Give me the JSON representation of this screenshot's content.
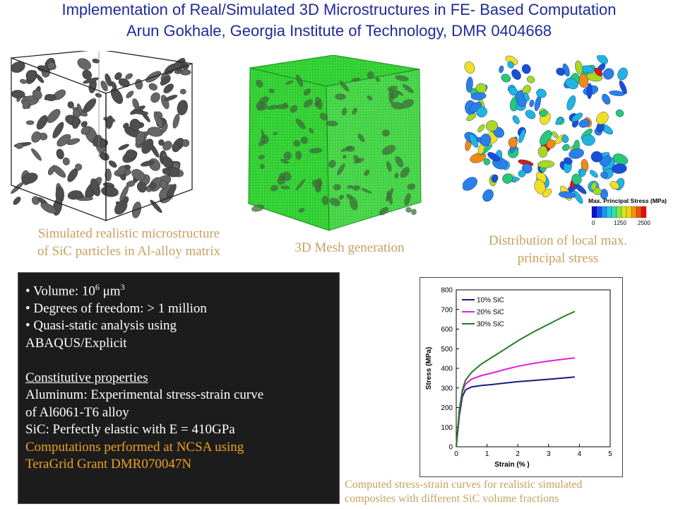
{
  "header": {
    "title": "Implementation of Real/Simulated 3D Microstructures in FE- Based Computation",
    "subtitle": "Arun Gokhale, Georgia Institute of Technology, DMR 0404668"
  },
  "panels": {
    "microstructure": {
      "caption_line1": "Simulated realistic microstructure",
      "caption_line2": "of SiC particles in Al-alloy matrix"
    },
    "mesh": {
      "caption": "3D Mesh generation"
    },
    "stress": {
      "caption_line1": "Distribution of local max.",
      "caption_line2": "principal stress",
      "colorbar_title": "Max. Principal Stress (MPa)",
      "colorbar_ticks": [
        "0",
        "1250",
        "2500"
      ]
    }
  },
  "info": {
    "volume_prefix": "• Volume: 10",
    "volume_exp": "6",
    "volume_unit": " μm",
    "volume_unit_exp": "3",
    "dof": "• Degrees of freedom: > 1 million",
    "quasi_line1": "• Quasi-static analysis using",
    "quasi_line2": "ABAQUS/Explicit",
    "constitutive_heading": "Constitutive properties",
    "aluminum_line1": "Aluminum: Experimental stress-strain curve",
    "aluminum_line2": "of Al6061-T6 alloy",
    "sic": "SiC: Perfectly elastic with E = 410GPa",
    "ncsa_line1": "Computations performed at NCSA using",
    "ncsa_line2": "TeraGrid Grant DMR070047N"
  },
  "chart_caption": {
    "line1": "Computed stress-strain curves for realistic simulated",
    "line2": "composites with different SiC volume fractions"
  },
  "chart_data": {
    "type": "line",
    "xlabel": "Strain (% )",
    "ylabel": "Stress (MPa)",
    "xlim": [
      0,
      5
    ],
    "ylim": [
      0,
      800
    ],
    "xticks": [
      0,
      1,
      2,
      3,
      4,
      5
    ],
    "yticks": [
      0,
      100,
      200,
      300,
      400,
      500,
      600,
      700,
      800
    ],
    "legend_position": "top-left",
    "series": [
      {
        "name": "10% SiC",
        "color": "#1a1a80",
        "x": [
          0,
          0.1,
          0.2,
          0.3,
          0.5,
          0.8,
          1.2,
          1.6,
          2.0,
          2.5,
          3.0,
          3.5,
          3.85
        ],
        "y": [
          0,
          160,
          255,
          290,
          305,
          312,
          318,
          325,
          332,
          338,
          344,
          351,
          356
        ]
      },
      {
        "name": "20% SiC",
        "color": "#e020e0",
        "x": [
          0,
          0.1,
          0.2,
          0.3,
          0.5,
          0.8,
          1.2,
          1.6,
          2.0,
          2.5,
          3.0,
          3.5,
          3.85
        ],
        "y": [
          0,
          180,
          280,
          320,
          345,
          362,
          378,
          395,
          410,
          425,
          437,
          447,
          453
        ]
      },
      {
        "name": "30% SiC",
        "color": "#208020",
        "x": [
          0,
          0.1,
          0.2,
          0.3,
          0.5,
          0.8,
          1.2,
          1.6,
          2.0,
          2.5,
          3.0,
          3.5,
          3.85
        ],
        "y": [
          0,
          190,
          290,
          340,
          380,
          420,
          460,
          500,
          540,
          585,
          625,
          665,
          690
        ]
      }
    ]
  }
}
